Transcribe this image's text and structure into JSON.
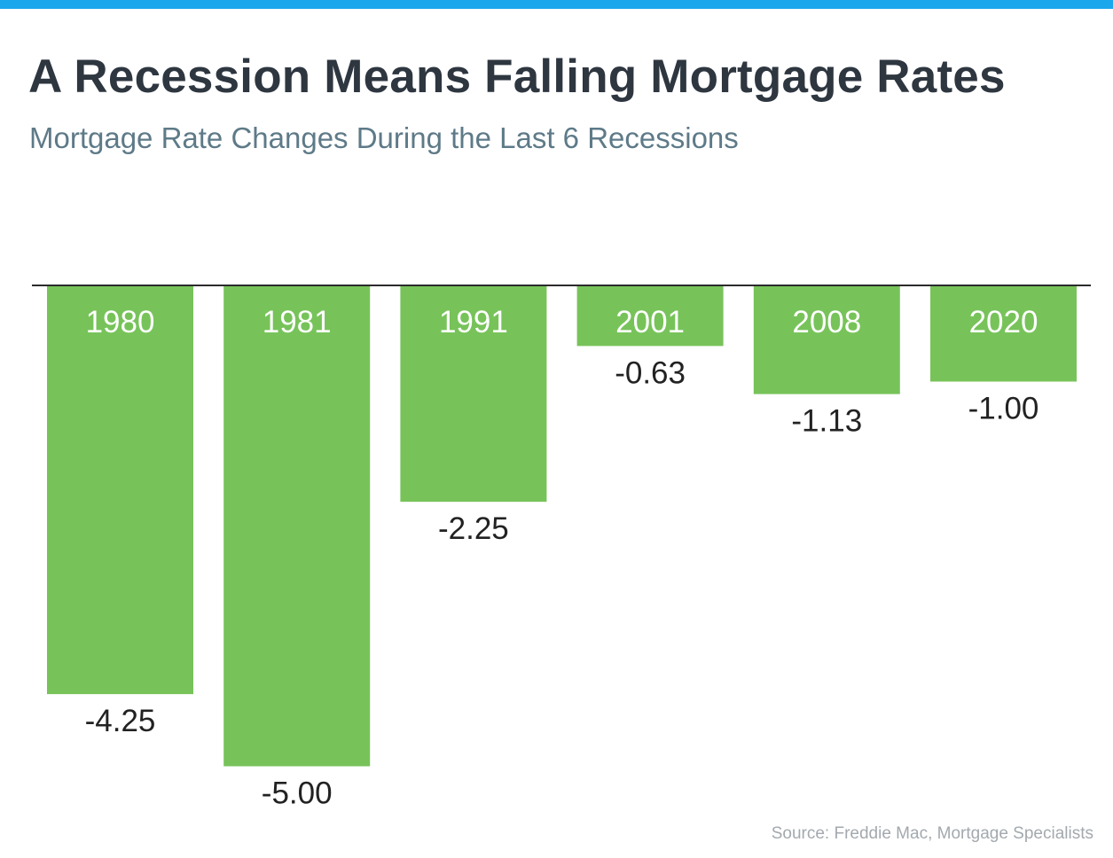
{
  "header": {
    "title": "A Recession Means Falling Mortgage Rates",
    "subtitle": "Mortgage Rate Changes During the Last 6 Recessions",
    "accent_color": "#1aa7ec"
  },
  "footer": {
    "source": "Source: Freddie Mac, Mortgage Specialists"
  },
  "chart_data": {
    "type": "bar",
    "title": "A Recession Means Falling Mortgage Rates",
    "subtitle": "Mortgage Rate Changes During the Last 6 Recessions",
    "xlabel": "",
    "ylabel": "",
    "categories": [
      "1980",
      "1981",
      "1991",
      "2001",
      "2008",
      "2020"
    ],
    "values": [
      -4.25,
      -5.0,
      -2.25,
      -0.63,
      -1.13,
      -1.0
    ],
    "value_labels": [
      "-4.25",
      "-5.00",
      "-2.25",
      "-0.63",
      "-1.13",
      "-1.00"
    ],
    "ylim": [
      -5,
      0
    ],
    "grid": false,
    "legend": "none",
    "bar_color": "#77c35a",
    "category_label_color": "#ffffff",
    "value_label_color": "#222222",
    "baseline_color": "#2b2b2b"
  }
}
